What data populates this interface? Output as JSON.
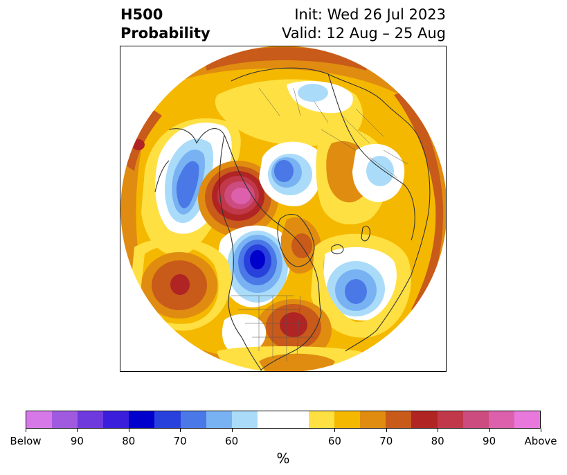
{
  "header": {
    "title_line1": "H500",
    "title_line2": "Probability",
    "init_text": "Init: Wed 26 Jul 2023",
    "valid_text": "Valid: 12 Aug – 25 Aug"
  },
  "colorbar": {
    "colors": [
      "#d678e8",
      "#a05ae0",
      "#6e3ade",
      "#3a1edb",
      "#0000cd",
      "#2840dc",
      "#4a78e6",
      "#78b2f2",
      "#aadcfa",
      "#ffffff",
      "#ffffff",
      "#ffe042",
      "#f5b800",
      "#e08c10",
      "#c85a1a",
      "#b02424",
      "#c0384a",
      "#cc4c80",
      "#dc60ac",
      "#e878dc"
    ],
    "tick_labels": [
      "Below",
      "90",
      "80",
      "70",
      "60",
      "60",
      "70",
      "80",
      "90",
      "Above"
    ],
    "unit": "%"
  },
  "map": {
    "projection": "north-polar-stereographic",
    "variable": "500 hPa height anomaly probability",
    "palette": {
      "below_weak": "#aadcfa",
      "below_mid": "#78b2f2",
      "below_strong": "#4a78e6",
      "below_max": "#0000cd",
      "neutral": "#ffffff",
      "above_weak": "#ffe042",
      "above_mid": "#f5b800",
      "above_strong": "#e08c10",
      "above_high": "#c85a1a",
      "above_max": "#b02424",
      "above_extreme": "#cc4c80",
      "above_peak": "#dc60ac",
      "coast": "#333333",
      "borders": "#555555"
    }
  }
}
